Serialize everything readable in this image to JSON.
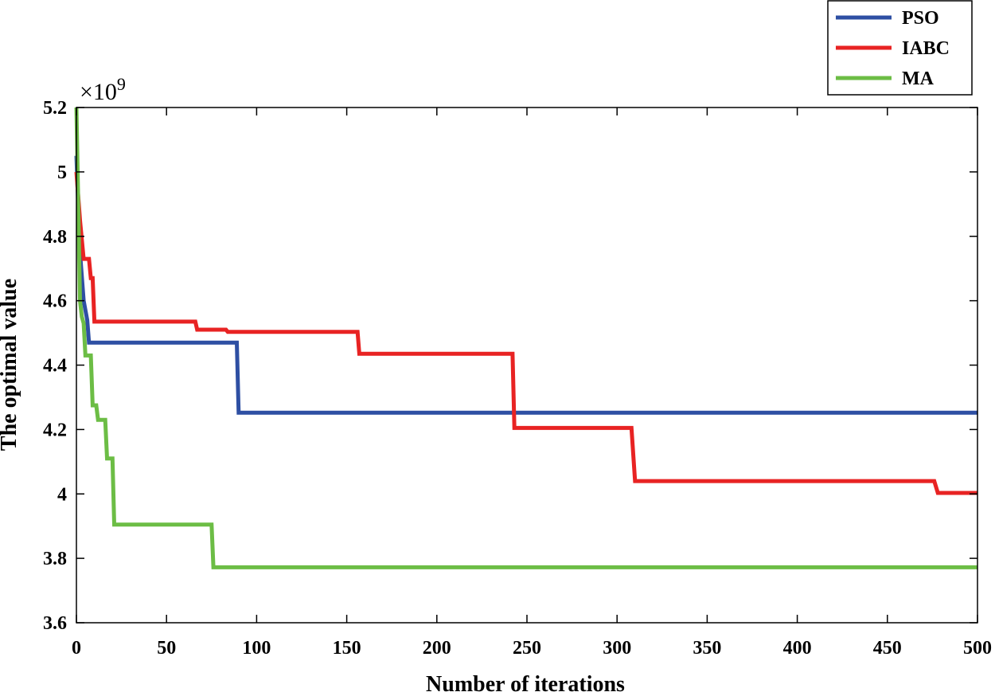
{
  "chart_data": {
    "type": "line",
    "title": "",
    "xlabel": "Number of iterations",
    "ylabel": "The optimal value",
    "y_exponent_label": "×10",
    "y_exponent_power": "9",
    "xlim": [
      0,
      500
    ],
    "ylim": [
      3.6,
      5.2
    ],
    "xticks": [
      0,
      50,
      100,
      150,
      200,
      250,
      300,
      350,
      400,
      450,
      500
    ],
    "yticks": [
      3.6,
      3.8,
      4,
      4.2,
      4.4,
      4.6,
      4.8,
      5,
      5.2
    ],
    "xtick_labels": [
      "0",
      "50",
      "100",
      "150",
      "200",
      "250",
      "300",
      "350",
      "400",
      "450",
      "500"
    ],
    "ytick_labels": [
      "3.6",
      "3.8",
      "4",
      "4.2",
      "4.4",
      "4.6",
      "4.8",
      "5",
      "5.2"
    ],
    "grid": false,
    "legend_position": "top-right",
    "series": [
      {
        "name": "PSO",
        "color": "#2e4fa3",
        "points": [
          [
            0,
            5.05
          ],
          [
            2,
            4.75
          ],
          [
            4,
            4.6
          ],
          [
            6,
            4.54
          ],
          [
            7,
            4.47
          ],
          [
            89,
            4.47
          ],
          [
            90,
            4.252
          ],
          [
            500,
            4.252
          ]
        ]
      },
      {
        "name": "IABC",
        "color": "#e82323",
        "points": [
          [
            0,
            5.0
          ],
          [
            2,
            4.85
          ],
          [
            4,
            4.73
          ],
          [
            7,
            4.73
          ],
          [
            8,
            4.67
          ],
          [
            9,
            4.67
          ],
          [
            10,
            4.535
          ],
          [
            66,
            4.535
          ],
          [
            67,
            4.51
          ],
          [
            83,
            4.51
          ],
          [
            84,
            4.503
          ],
          [
            156,
            4.503
          ],
          [
            157,
            4.435
          ],
          [
            242,
            4.435
          ],
          [
            243,
            4.205
          ],
          [
            308,
            4.205
          ],
          [
            310,
            4.04
          ],
          [
            476,
            4.04
          ],
          [
            478,
            4.003
          ],
          [
            500,
            4.003
          ]
        ]
      },
      {
        "name": "MA",
        "color": "#6cbd45",
        "points": [
          [
            0,
            5.2
          ],
          [
            1,
            4.9
          ],
          [
            2,
            4.6
          ],
          [
            3,
            4.55
          ],
          [
            4,
            4.53
          ],
          [
            5,
            4.43
          ],
          [
            8,
            4.43
          ],
          [
            9,
            4.275
          ],
          [
            11,
            4.275
          ],
          [
            12,
            4.23
          ],
          [
            16,
            4.23
          ],
          [
            17,
            4.11
          ],
          [
            20,
            4.11
          ],
          [
            21,
            3.905
          ],
          [
            75,
            3.905
          ],
          [
            76,
            3.772
          ],
          [
            500,
            3.772
          ]
        ]
      }
    ]
  }
}
